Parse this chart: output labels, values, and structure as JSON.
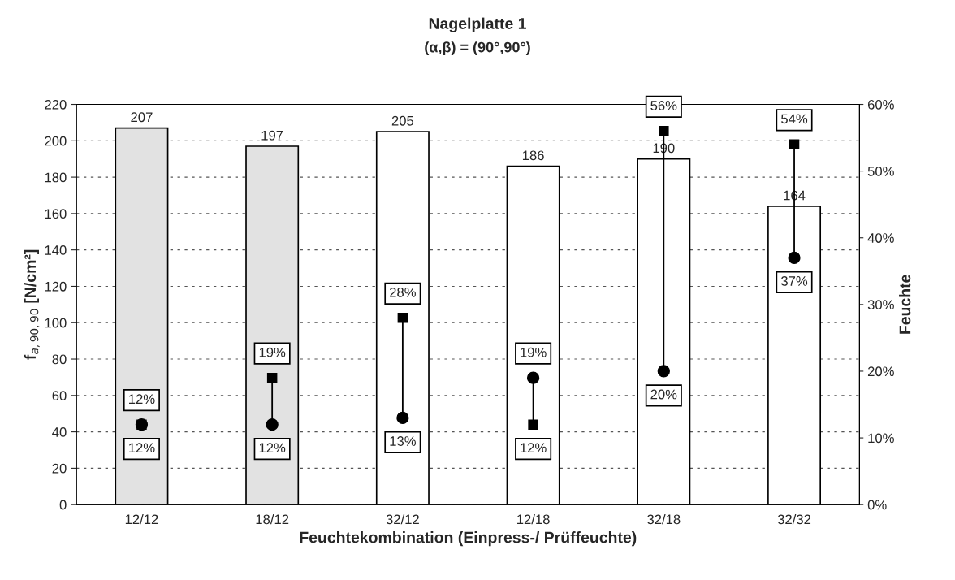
{
  "chart_data": {
    "type": "bar",
    "title": "Nagelplatte 1",
    "subtitle": "(α,β) = (90°,90°)",
    "xlabel": "Feuchtekombination (Einpress-/ Prüffeuchte)",
    "ylabel": "f$_{a,90,90}$ [N/cm²]",
    "y2label": "Feuchte",
    "categories": [
      "12/12",
      "18/12",
      "32/12",
      "12/18",
      "32/18",
      "32/32"
    ],
    "values": [
      207,
      197,
      205,
      186,
      190,
      164
    ],
    "colors": [
      "#e2e2e2",
      "#e2e2e2",
      "#ffffff",
      "#ffffff",
      "#ffffff",
      "#ffffff"
    ],
    "data_labels": true,
    "series": [
      {
        "type": "scatter",
        "axis": "y2",
        "color": "#000000",
        "marker": "square",
        "values": [
          12,
          19,
          28,
          12,
          56,
          54
        ],
        "value_labels": [
          "12%",
          "19%",
          "28%",
          "12%",
          "56%",
          "54%"
        ]
      },
      {
        "type": "scatter",
        "axis": "y2",
        "color": "#000000",
        "marker": "circle",
        "values": [
          12,
          12,
          13,
          19,
          20,
          37
        ],
        "value_labels": [
          "12%",
          "12%",
          "13%",
          "19%",
          "20%",
          "37%"
        ]
      }
    ],
    "ylim": [
      0,
      220
    ],
    "yticks": [
      0,
      20,
      40,
      60,
      80,
      100,
      120,
      140,
      160,
      180,
      200,
      220
    ],
    "y2lim": [
      0,
      60
    ],
    "y2ticks": [
      {
        "value": 0,
        "label": "0%"
      },
      {
        "value": 10,
        "label": "10%"
      },
      {
        "value": 20,
        "label": "20%"
      },
      {
        "value": 30,
        "label": "30%"
      },
      {
        "value": 40,
        "label": "40%"
      },
      {
        "value": 50,
        "label": "50%"
      },
      {
        "value": 60,
        "label": "60%"
      }
    ],
    "grid": "y"
  }
}
